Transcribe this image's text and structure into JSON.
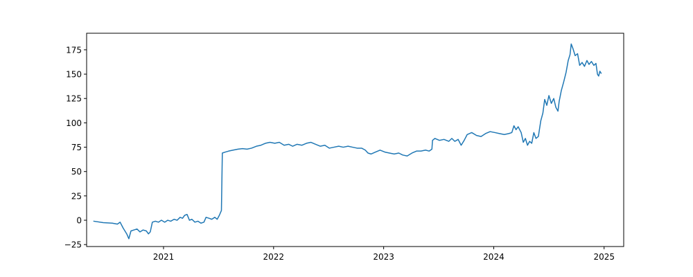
{
  "chart_data": {
    "type": "line",
    "title": "",
    "xlabel": "",
    "ylabel": "",
    "xlim": [
      "2020-04-21",
      "2025-03-07"
    ],
    "ylim": [
      -27,
      192
    ],
    "x_ticks": [
      "2021",
      "2022",
      "2023",
      "2024",
      "2025"
    ],
    "y_ticks": [
      "−25",
      "0",
      "25",
      "50",
      "75",
      "100",
      "125",
      "150",
      "175"
    ],
    "y_tick_values": [
      -25,
      0,
      25,
      50,
      75,
      100,
      125,
      150,
      175
    ],
    "grid": false,
    "series": [
      {
        "color": "#1f77b4",
        "points": [
          [
            "2020-05-15",
            -1
          ],
          [
            "2020-06-15",
            -2.5
          ],
          [
            "2020-07-15",
            -3
          ],
          [
            "2020-08-01",
            -4
          ],
          [
            "2020-08-10",
            -2
          ],
          [
            "2020-08-20",
            -8
          ],
          [
            "2020-09-01",
            -14
          ],
          [
            "2020-09-08",
            -19
          ],
          [
            "2020-09-15",
            -11
          ],
          [
            "2020-09-25",
            -10
          ],
          [
            "2020-10-05",
            -9
          ],
          [
            "2020-10-15",
            -12
          ],
          [
            "2020-10-25",
            -10
          ],
          [
            "2020-11-05",
            -11
          ],
          [
            "2020-11-12",
            -14
          ],
          [
            "2020-11-18",
            -12
          ],
          [
            "2020-11-25",
            -2
          ],
          [
            "2020-12-05",
            -1
          ],
          [
            "2020-12-15",
            -2
          ],
          [
            "2020-12-25",
            0
          ],
          [
            "2021-01-05",
            -2
          ],
          [
            "2021-01-15",
            0
          ],
          [
            "2021-01-25",
            -1
          ],
          [
            "2021-02-05",
            1
          ],
          [
            "2021-02-15",
            0
          ],
          [
            "2021-02-25",
            3
          ],
          [
            "2021-03-05",
            2
          ],
          [
            "2021-03-12",
            5
          ],
          [
            "2021-03-20",
            6
          ],
          [
            "2021-03-28",
            0
          ],
          [
            "2021-04-05",
            1
          ],
          [
            "2021-04-15",
            -2
          ],
          [
            "2021-04-25",
            -1
          ],
          [
            "2021-05-05",
            -3
          ],
          [
            "2021-05-15",
            -2
          ],
          [
            "2021-05-22",
            3
          ],
          [
            "2021-06-01",
            2
          ],
          [
            "2021-06-10",
            1
          ],
          [
            "2021-06-20",
            3
          ],
          [
            "2021-06-28",
            1
          ],
          [
            "2021-07-05",
            5
          ],
          [
            "2021-07-12",
            10
          ],
          [
            "2021-07-15",
            69
          ],
          [
            "2021-07-25",
            70
          ],
          [
            "2021-08-05",
            71
          ],
          [
            "2021-08-20",
            72
          ],
          [
            "2021-09-05",
            73
          ],
          [
            "2021-09-20",
            73.5
          ],
          [
            "2021-10-05",
            73
          ],
          [
            "2021-10-20",
            74
          ],
          [
            "2021-11-05",
            76
          ],
          [
            "2021-11-20",
            77
          ],
          [
            "2021-12-05",
            79
          ],
          [
            "2021-12-20",
            80
          ],
          [
            "2022-01-05",
            79
          ],
          [
            "2022-01-20",
            80
          ],
          [
            "2022-02-05",
            77
          ],
          [
            "2022-02-20",
            78
          ],
          [
            "2022-03-05",
            76
          ],
          [
            "2022-03-20",
            78
          ],
          [
            "2022-04-05",
            77
          ],
          [
            "2022-04-20",
            79
          ],
          [
            "2022-05-05",
            80
          ],
          [
            "2022-05-20",
            78
          ],
          [
            "2022-06-05",
            76
          ],
          [
            "2022-06-20",
            77
          ],
          [
            "2022-07-05",
            74
          ],
          [
            "2022-07-20",
            75
          ],
          [
            "2022-08-05",
            76
          ],
          [
            "2022-08-20",
            75
          ],
          [
            "2022-09-05",
            76
          ],
          [
            "2022-09-20",
            75
          ],
          [
            "2022-10-05",
            74
          ],
          [
            "2022-10-20",
            74
          ],
          [
            "2022-11-01",
            72
          ],
          [
            "2022-11-10",
            69
          ],
          [
            "2022-11-20",
            68
          ],
          [
            "2022-12-05",
            70
          ],
          [
            "2022-12-20",
            72
          ],
          [
            "2023-01-05",
            70
          ],
          [
            "2023-01-20",
            69
          ],
          [
            "2023-02-05",
            68
          ],
          [
            "2023-02-20",
            69
          ],
          [
            "2023-03-05",
            67
          ],
          [
            "2023-03-20",
            66
          ],
          [
            "2023-04-05",
            69
          ],
          [
            "2023-04-20",
            71
          ],
          [
            "2023-05-05",
            71
          ],
          [
            "2023-05-20",
            72
          ],
          [
            "2023-06-01",
            71
          ],
          [
            "2023-06-10",
            73
          ],
          [
            "2023-06-12",
            82
          ],
          [
            "2023-06-20",
            84
          ],
          [
            "2023-07-05",
            82
          ],
          [
            "2023-07-20",
            83
          ],
          [
            "2023-08-05",
            81
          ],
          [
            "2023-08-15",
            84
          ],
          [
            "2023-08-25",
            81
          ],
          [
            "2023-09-05",
            83
          ],
          [
            "2023-09-15",
            77
          ],
          [
            "2023-09-25",
            82
          ],
          [
            "2023-10-05",
            88
          ],
          [
            "2023-10-20",
            90
          ],
          [
            "2023-11-05",
            87
          ],
          [
            "2023-11-20",
            86
          ],
          [
            "2023-12-05",
            89
          ],
          [
            "2023-12-20",
            91
          ],
          [
            "2024-01-05",
            90
          ],
          [
            "2024-01-20",
            89
          ],
          [
            "2024-02-05",
            88
          ],
          [
            "2024-02-20",
            89
          ],
          [
            "2024-03-01",
            90
          ],
          [
            "2024-03-08",
            97
          ],
          [
            "2024-03-15",
            93
          ],
          [
            "2024-03-22",
            96
          ],
          [
            "2024-04-01",
            90
          ],
          [
            "2024-04-08",
            80
          ],
          [
            "2024-04-15",
            84
          ],
          [
            "2024-04-22",
            77
          ],
          [
            "2024-04-29",
            81
          ],
          [
            "2024-05-06",
            79
          ],
          [
            "2024-05-13",
            90
          ],
          [
            "2024-05-20",
            84
          ],
          [
            "2024-05-28",
            86
          ],
          [
            "2024-06-05",
            102
          ],
          [
            "2024-06-12",
            110
          ],
          [
            "2024-06-18",
            124
          ],
          [
            "2024-06-25",
            118
          ],
          [
            "2024-07-02",
            128
          ],
          [
            "2024-07-10",
            120
          ],
          [
            "2024-07-18",
            125
          ],
          [
            "2024-07-25",
            116
          ],
          [
            "2024-08-01",
            112
          ],
          [
            "2024-08-05",
            122
          ],
          [
            "2024-08-12",
            133
          ],
          [
            "2024-08-20",
            142
          ],
          [
            "2024-08-28",
            152
          ],
          [
            "2024-09-04",
            164
          ],
          [
            "2024-09-10",
            170
          ],
          [
            "2024-09-14",
            181
          ],
          [
            "2024-09-20",
            176
          ],
          [
            "2024-09-27",
            169
          ],
          [
            "2024-10-05",
            171
          ],
          [
            "2024-10-12",
            159
          ],
          [
            "2024-10-20",
            162
          ],
          [
            "2024-10-28",
            158
          ],
          [
            "2024-11-05",
            164
          ],
          [
            "2024-11-12",
            160
          ],
          [
            "2024-11-20",
            163
          ],
          [
            "2024-11-28",
            159
          ],
          [
            "2024-12-05",
            161
          ],
          [
            "2024-12-10",
            150
          ],
          [
            "2024-12-14",
            148
          ],
          [
            "2024-12-18",
            153
          ],
          [
            "2024-12-22",
            151
          ]
        ]
      }
    ]
  }
}
